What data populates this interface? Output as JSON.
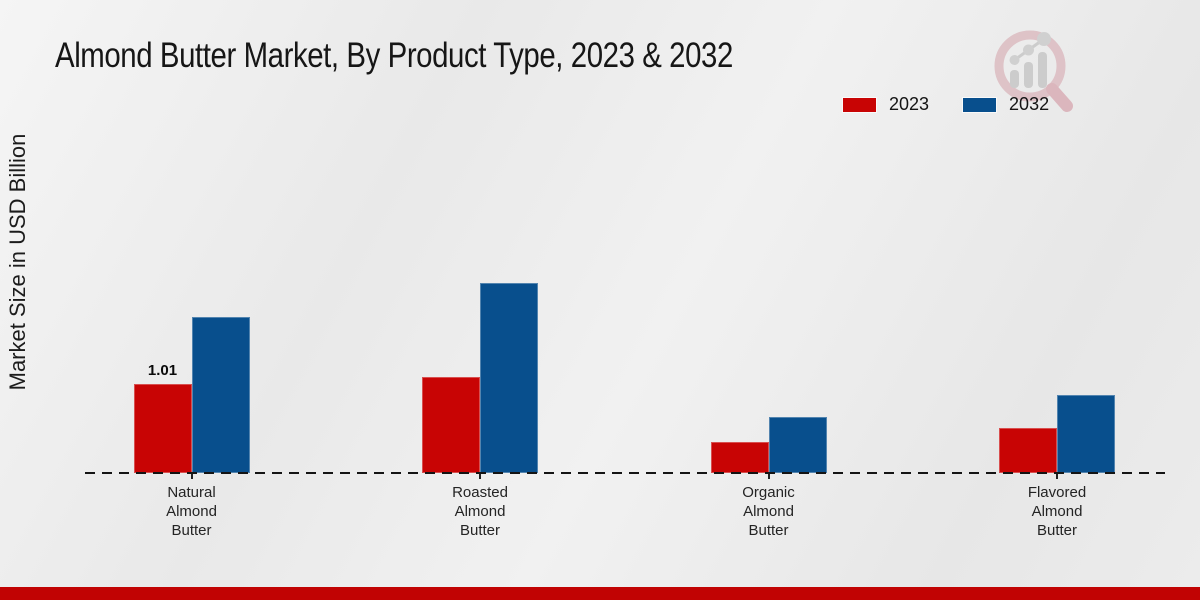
{
  "title": "Almond Butter Market, By Product Type, 2023 & 2032",
  "y_axis_label": "Market Size in USD Billion",
  "legend": [
    {
      "label": "2023",
      "color": "#c80404"
    },
    {
      "label": "2032",
      "color": "#084f8d"
    }
  ],
  "colors": {
    "series_2023": "#c80404",
    "series_2032": "#084f8d",
    "footer_bar": "#c10303",
    "background": "#ebebeb",
    "axis_line": "#141414"
  },
  "icons": {
    "watermark": "magnifier-bar-chart-logo"
  },
  "chart_data": {
    "type": "bar",
    "categories": [
      "Natural Almond Butter",
      "Roasted Almond Butter",
      "Organic Almond Butter",
      "Flavored Almond Butter"
    ],
    "series": [
      {
        "name": "2023",
        "color": "#c80404",
        "values": [
          1.01,
          1.09,
          0.36,
          0.51
        ]
      },
      {
        "name": "2032",
        "color": "#084f8d",
        "values": [
          1.77,
          2.15,
          0.64,
          0.89
        ]
      }
    ],
    "annotations": [
      {
        "series": "2023",
        "category_index": 0,
        "text": "1.01"
      }
    ],
    "title": "Almond Butter Market, By Product Type, 2023 & 2032",
    "xlabel": "",
    "ylabel": "Market Size in USD Billion",
    "ylim": [
      0,
      2.6
    ],
    "grid": false,
    "legend_position": "top-right",
    "baseline_style": "dashed",
    "y_axis_ticks_visible": false
  }
}
